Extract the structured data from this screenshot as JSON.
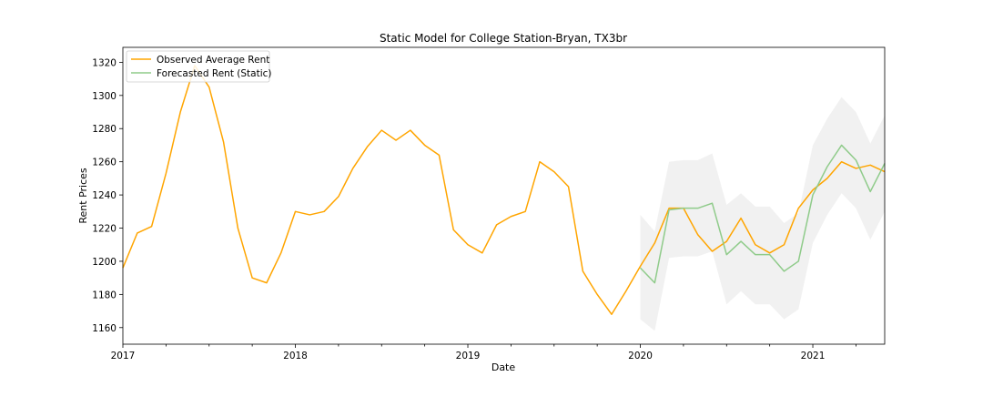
{
  "chart_data": {
    "type": "line",
    "title": "Static Model for College Station-Bryan, TX3br",
    "xlabel": "Date",
    "ylabel": "Rent Prices",
    "xlim": [
      "2017-01",
      "2021-06"
    ],
    "ylim": [
      1150,
      1329
    ],
    "x_ticks": [
      {
        "date": "2017-01",
        "label": "2017"
      },
      {
        "date": "2018-01",
        "label": "2018"
      },
      {
        "date": "2019-01",
        "label": "2019"
      },
      {
        "date": "2020-01",
        "label": "2020"
      },
      {
        "date": "2021-01",
        "label": "2021"
      }
    ],
    "y_ticks": [
      1160,
      1180,
      1200,
      1220,
      1240,
      1260,
      1280,
      1300,
      1320
    ],
    "legend_position": "top-left",
    "grid": false,
    "series": [
      {
        "name": "Observed Average Rent",
        "color": "#ffa500",
        "dates": [
          "2017-01",
          "2017-02",
          "2017-03",
          "2017-04",
          "2017-05",
          "2017-06",
          "2017-07",
          "2017-08",
          "2017-09",
          "2017-10",
          "2017-11",
          "2017-12",
          "2018-01",
          "2018-02",
          "2018-03",
          "2018-04",
          "2018-05",
          "2018-06",
          "2018-07",
          "2018-08",
          "2018-09",
          "2018-10",
          "2018-11",
          "2018-12",
          "2019-01",
          "2019-02",
          "2019-03",
          "2019-04",
          "2019-05",
          "2019-06",
          "2019-07",
          "2019-08",
          "2019-09",
          "2019-10",
          "2019-11",
          "2019-12",
          "2020-01",
          "2020-02",
          "2020-03",
          "2020-04",
          "2020-05",
          "2020-06",
          "2020-07",
          "2020-08",
          "2020-09",
          "2020-10",
          "2020-11",
          "2020-12",
          "2021-01",
          "2021-02",
          "2021-03",
          "2021-04",
          "2021-05",
          "2021-06"
        ],
        "values": [
          1196,
          1217,
          1221,
          1253,
          1290,
          1318,
          1305,
          1272,
          1220,
          1190,
          1187,
          1205,
          1230,
          1228,
          1230,
          1239,
          1256,
          1269,
          1279,
          1273,
          1279,
          1270,
          1264,
          1219,
          1210,
          1205,
          1222,
          1227,
          1230,
          1260,
          1254,
          1245,
          1194,
          1180,
          1168,
          1182,
          1197,
          1211,
          1232,
          1232,
          1216,
          1206,
          1212,
          1226,
          1210,
          1205,
          1210,
          1232,
          1243,
          1250,
          1260,
          1256,
          1258,
          1254
        ]
      },
      {
        "name": "Forecasted Rent (Static)",
        "color": "#8fcb8a",
        "dates": [
          "2020-01",
          "2020-02",
          "2020-03",
          "2020-04",
          "2020-05",
          "2020-06",
          "2020-07",
          "2020-08",
          "2020-09",
          "2020-10",
          "2020-11",
          "2020-12",
          "2021-01",
          "2021-02",
          "2021-03",
          "2021-04",
          "2021-05",
          "2021-06"
        ],
        "values": [
          1196,
          1187,
          1231,
          1232,
          1232,
          1235,
          1204,
          1212,
          1204,
          1204,
          1194,
          1200,
          1240,
          1257,
          1270,
          1261,
          1242,
          1259
        ],
        "ci_lower": [
          1165,
          1158,
          1202,
          1203,
          1203,
          1206,
          1174,
          1182,
          1174,
          1174,
          1165,
          1171,
          1211,
          1228,
          1241,
          1232,
          1213,
          1230
        ],
        "ci_upper": [
          1228,
          1218,
          1260,
          1261,
          1261,
          1265,
          1234,
          1241,
          1233,
          1233,
          1223,
          1229,
          1270,
          1286,
          1299,
          1290,
          1271,
          1288
        ],
        "ci_color": "#dcdcdc"
      }
    ]
  }
}
